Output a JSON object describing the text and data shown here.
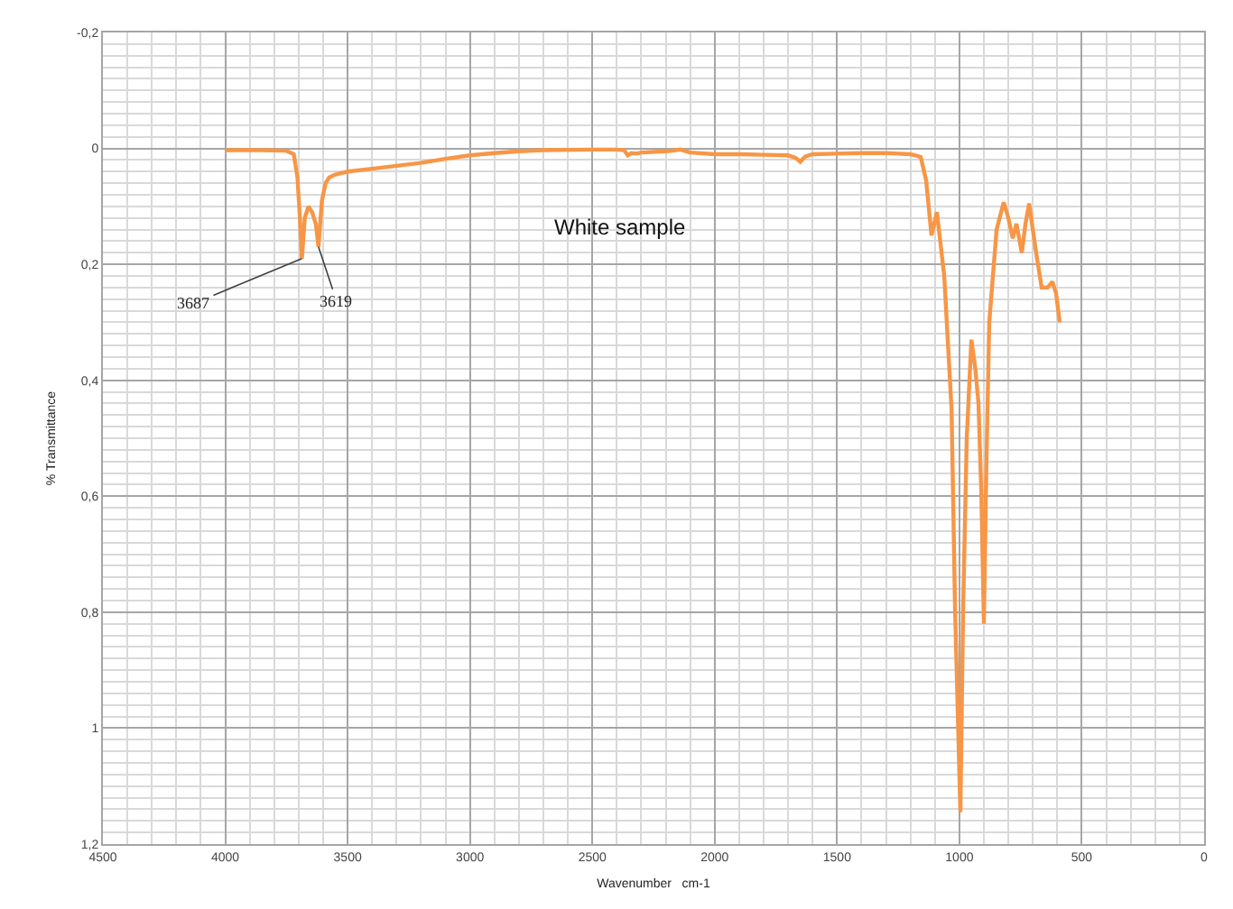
{
  "chart_data": {
    "type": "line",
    "xlabel": "Wavenumber   cm-1",
    "ylabel": "% Transmittance",
    "annotations": [
      "White sample",
      {
        "text": "3687",
        "x": 3687,
        "y": 0.19
      },
      {
        "text": "3619",
        "x": 3619,
        "y": 0.17
      }
    ],
    "xlim": [
      4500,
      0
    ],
    "xticks": [
      4500,
      4000,
      3500,
      3000,
      2500,
      2000,
      1500,
      1000,
      500,
      0
    ],
    "ylim": [
      1.2,
      -0.2
    ],
    "yticks": [
      {
        "value": -0.2,
        "label": "-0,2"
      },
      0,
      {
        "value": 0.2,
        "label": "0,2"
      },
      {
        "value": 0.4,
        "label": "0,4"
      },
      {
        "value": 0.6,
        "label": "0,6"
      },
      {
        "value": 0.8,
        "label": "0,8"
      },
      1,
      {
        "value": 1.2,
        "label": "1,2"
      }
    ],
    "grid": true,
    "line_style": "solid",
    "marker": "none",
    "series": [
      {
        "color": "#f79646",
        "x": [
          4000,
          3850,
          3750,
          3720,
          3705,
          3695,
          3687,
          3675,
          3660,
          3645,
          3630,
          3619,
          3605,
          3590,
          3575,
          3550,
          3500,
          3400,
          3300,
          3200,
          3100,
          3000,
          2900,
          2800,
          2700,
          2500,
          2400,
          2370,
          2355,
          2340,
          2320,
          2300,
          2200,
          2160,
          2140,
          2100,
          2000,
          1900,
          1800,
          1700,
          1670,
          1650,
          1630,
          1600,
          1500,
          1400,
          1300,
          1250,
          1200,
          1180,
          1158,
          1136,
          1114,
          1092,
          1062,
          1032,
          1018,
          996,
          985,
          970,
          951,
          935,
          922,
          910,
          900,
          890,
          878,
          848,
          819,
          800,
          782,
          767,
          745,
          730,
          715,
          690,
          664,
          640,
          620,
          605,
          590
        ],
        "values": [
          0.003,
          0.003,
          0.004,
          0.01,
          0.05,
          0.12,
          0.19,
          0.12,
          0.1,
          0.11,
          0.13,
          0.17,
          0.09,
          0.06,
          0.05,
          0.045,
          0.04,
          0.035,
          0.03,
          0.025,
          0.018,
          0.012,
          0.008,
          0.005,
          0.003,
          0.002,
          0.002,
          0.003,
          0.012,
          0.008,
          0.009,
          0.007,
          0.005,
          0.003,
          0.002,
          0.007,
          0.01,
          0.01,
          0.011,
          0.012,
          0.016,
          0.023,
          0.014,
          0.01,
          0.009,
          0.008,
          0.008,
          0.009,
          0.01,
          0.012,
          0.015,
          0.055,
          0.15,
          0.11,
          0.22,
          0.45,
          0.79,
          1.145,
          0.8,
          0.5,
          0.33,
          0.38,
          0.44,
          0.6,
          0.82,
          0.55,
          0.3,
          0.14,
          0.093,
          0.12,
          0.155,
          0.13,
          0.18,
          0.13,
          0.095,
          0.17,
          0.24,
          0.24,
          0.23,
          0.25,
          0.3
        ]
      }
    ]
  }
}
